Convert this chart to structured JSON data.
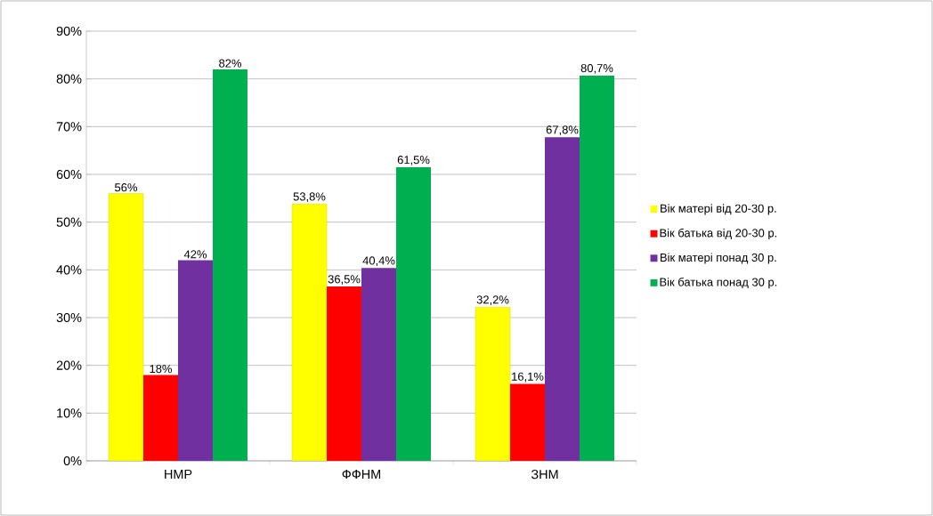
{
  "chart_data": {
    "type": "bar",
    "categories": [
      "НМР",
      "ФФНМ",
      "ЗНМ"
    ],
    "series": [
      {
        "name": "Вік матері від 20-30 р.",
        "color": "#ffff00",
        "values": [
          56,
          53.8,
          32.2
        ],
        "value_labels": [
          "56%",
          "53,8%",
          "32,2%"
        ]
      },
      {
        "name": "Вік батька від 20-30 р.",
        "color": "#ff0000",
        "values": [
          18,
          36.5,
          16.1
        ],
        "value_labels": [
          "18%",
          "36,5%",
          "16,1%"
        ]
      },
      {
        "name": "Вік матері понад 30 р.",
        "color": "#7030a0",
        "values": [
          42,
          40.4,
          67.8
        ],
        "value_labels": [
          "42%",
          "40,4%",
          "67,8%"
        ]
      },
      {
        "name": "Вік батька понад 30 р.",
        "color": "#00b050",
        "values": [
          82,
          61.5,
          80.7
        ],
        "value_labels": [
          "82%",
          "61,5%",
          "80,7%"
        ]
      }
    ],
    "ylim": [
      0,
      90
    ],
    "yticks": [
      {
        "value": 0,
        "label": "0%"
      },
      {
        "value": 10,
        "label": "10%"
      },
      {
        "value": 20,
        "label": "20%"
      },
      {
        "value": 30,
        "label": "30%"
      },
      {
        "value": 40,
        "label": "40%"
      },
      {
        "value": 50,
        "label": "50%"
      },
      {
        "value": 60,
        "label": "60%"
      },
      {
        "value": 70,
        "label": "70%"
      },
      {
        "value": 80,
        "label": "80%"
      },
      {
        "value": 90,
        "label": "90%"
      }
    ],
    "grid": "y",
    "legend": "right"
  }
}
